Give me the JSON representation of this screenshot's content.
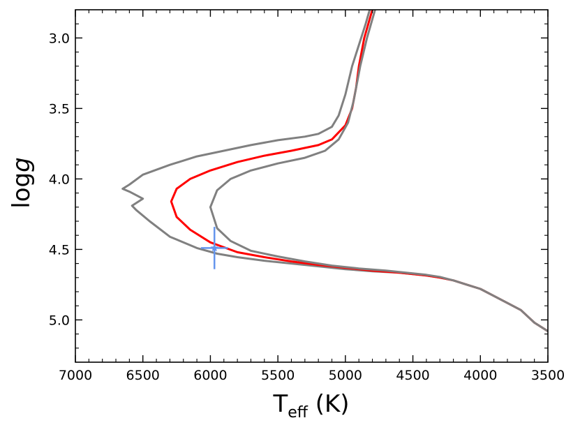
{
  "chart_data": {
    "type": "line",
    "title": "",
    "xlabel": {
      "main": "T",
      "sub": "eff",
      "unit": " (K)"
    },
    "ylabel": {
      "main": "log",
      "italic": "g"
    },
    "xlim": [
      7000,
      3500
    ],
    "ylim": [
      5.3,
      2.8
    ],
    "x_inverted": true,
    "y_inverted": true,
    "xticks": [
      7000,
      6500,
      6000,
      5500,
      5000,
      4500,
      4000,
      3500
    ],
    "xtick_labels": [
      "7000",
      "6500",
      "6000",
      "5500",
      "5000",
      "4500",
      "4000",
      "3500"
    ],
    "yticks": [
      3.0,
      3.5,
      4.0,
      4.5,
      5.0
    ],
    "ytick_labels": [
      "3.0",
      "3.5",
      "4.0",
      "4.5",
      "5.0"
    ],
    "grid": false,
    "series": [
      {
        "color": "#808080",
        "points": [
          [
            3500,
            5.08
          ],
          [
            3600,
            5.02
          ],
          [
            3700,
            4.93
          ],
          [
            3800,
            4.88
          ],
          [
            3900,
            4.83
          ],
          [
            4000,
            4.78
          ],
          [
            4100,
            4.75
          ],
          [
            4200,
            4.72
          ],
          [
            4300,
            4.7
          ],
          [
            4400,
            4.685
          ],
          [
            4500,
            4.675
          ],
          [
            4600,
            4.665
          ],
          [
            4800,
            4.655
          ],
          [
            5000,
            4.64
          ],
          [
            5200,
            4.62
          ],
          [
            5400,
            4.6
          ],
          [
            5600,
            4.58
          ],
          [
            5800,
            4.555
          ],
          [
            5950,
            4.53
          ],
          [
            6100,
            4.49
          ],
          [
            6300,
            4.41
          ],
          [
            6450,
            4.3
          ],
          [
            6550,
            4.22
          ],
          [
            6580,
            4.19
          ],
          [
            6500,
            4.14
          ],
          [
            6600,
            4.09
          ],
          [
            6650,
            4.07
          ],
          [
            6600,
            4.04
          ],
          [
            6500,
            3.97
          ],
          [
            6300,
            3.9
          ],
          [
            6100,
            3.84
          ],
          [
            5900,
            3.8
          ],
          [
            5700,
            3.76
          ],
          [
            5500,
            3.725
          ],
          [
            5300,
            3.7
          ],
          [
            5200,
            3.68
          ],
          [
            5100,
            3.63
          ],
          [
            5050,
            3.55
          ],
          [
            5000,
            3.4
          ],
          [
            4950,
            3.2
          ],
          [
            4900,
            3.05
          ],
          [
            4850,
            2.9
          ],
          [
            4820,
            2.8
          ]
        ]
      },
      {
        "color": "#ff0000",
        "points": [
          [
            3500,
            5.08
          ],
          [
            3600,
            5.02
          ],
          [
            3700,
            4.93
          ],
          [
            3800,
            4.88
          ],
          [
            3900,
            4.83
          ],
          [
            4000,
            4.78
          ],
          [
            4100,
            4.75
          ],
          [
            4200,
            4.72
          ],
          [
            4300,
            4.7
          ],
          [
            4400,
            4.685
          ],
          [
            4500,
            4.675
          ],
          [
            4600,
            4.665
          ],
          [
            4800,
            4.65
          ],
          [
            5000,
            4.63
          ],
          [
            5200,
            4.61
          ],
          [
            5400,
            4.585
          ],
          [
            5600,
            4.555
          ],
          [
            5800,
            4.52
          ],
          [
            6000,
            4.45
          ],
          [
            6150,
            4.36
          ],
          [
            6250,
            4.27
          ],
          [
            6290,
            4.16
          ],
          [
            6250,
            4.07
          ],
          [
            6150,
            4.0
          ],
          [
            6000,
            3.94
          ],
          [
            5800,
            3.88
          ],
          [
            5600,
            3.835
          ],
          [
            5400,
            3.8
          ],
          [
            5200,
            3.76
          ],
          [
            5100,
            3.72
          ],
          [
            5000,
            3.62
          ],
          [
            4950,
            3.5
          ],
          [
            4920,
            3.35
          ],
          [
            4900,
            3.2
          ],
          [
            4860,
            3.0
          ],
          [
            4800,
            2.8
          ]
        ]
      },
      {
        "color": "#808080",
        "points": [
          [
            3500,
            5.08
          ],
          [
            3600,
            5.02
          ],
          [
            3700,
            4.93
          ],
          [
            3800,
            4.88
          ],
          [
            3900,
            4.83
          ],
          [
            4000,
            4.78
          ],
          [
            4100,
            4.75
          ],
          [
            4200,
            4.72
          ],
          [
            4300,
            4.695
          ],
          [
            4400,
            4.68
          ],
          [
            4500,
            4.67
          ],
          [
            4600,
            4.66
          ],
          [
            4700,
            4.65
          ],
          [
            4900,
            4.635
          ],
          [
            5100,
            4.615
          ],
          [
            5300,
            4.585
          ],
          [
            5500,
            4.55
          ],
          [
            5700,
            4.51
          ],
          [
            5850,
            4.44
          ],
          [
            5950,
            4.35
          ],
          [
            6000,
            4.2
          ],
          [
            5950,
            4.08
          ],
          [
            5850,
            4.0
          ],
          [
            5700,
            3.94
          ],
          [
            5500,
            3.89
          ],
          [
            5300,
            3.85
          ],
          [
            5150,
            3.8
          ],
          [
            5050,
            3.72
          ],
          [
            4980,
            3.6
          ],
          [
            4940,
            3.45
          ],
          [
            4890,
            3.2
          ],
          [
            4840,
            3.0
          ],
          [
            4780,
            2.8
          ]
        ]
      }
    ],
    "marker": {
      "color": "#6495ed",
      "x": 5970,
      "y": 4.49,
      "x_err": 100,
      "y_err": 0.15
    }
  }
}
